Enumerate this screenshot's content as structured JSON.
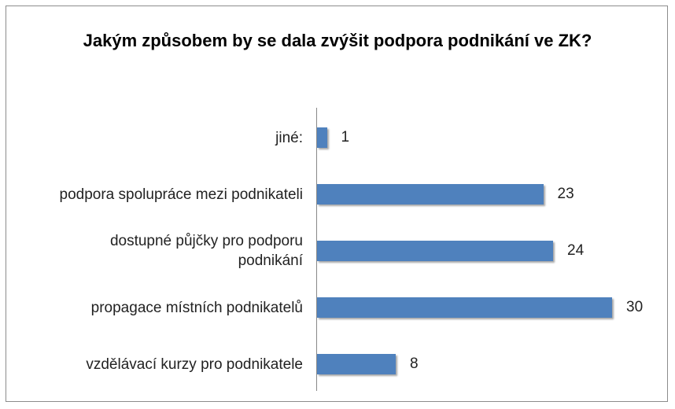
{
  "chart_data": {
    "type": "bar",
    "orientation": "horizontal",
    "title": "Jakým způsobem by se dala zvýšit podpora podnikání ve ZK?",
    "categories": [
      "jiné:",
      "podpora spolupráce mezi podnikateli",
      "dostupné půjčky pro podporu podnikání",
      "propagace místních podnikatelů",
      "vzdělávací kurzy pro podnikatele"
    ],
    "values": [
      1,
      23,
      24,
      30,
      8
    ],
    "color": "#4f81bd"
  }
}
